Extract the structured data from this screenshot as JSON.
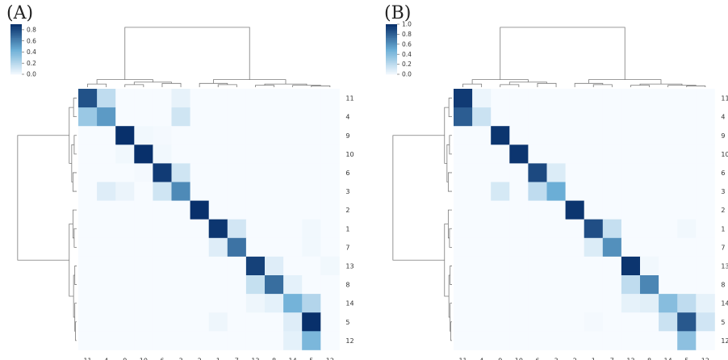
{
  "colors": {
    "low": "#f7fbff",
    "mid": "#6baed6",
    "high": "#08306b",
    "dendrogram": "#7a7a7a"
  },
  "chart_data": [
    {
      "type": "heatmap",
      "panel_label": "(A)",
      "row_labels": [
        "11",
        "4",
        "9",
        "10",
        "6",
        "3",
        "2",
        "1",
        "7",
        "13",
        "8",
        "14",
        "5",
        "12"
      ],
      "col_labels": [
        "11",
        "4",
        "9",
        "10",
        "6",
        "3",
        "2",
        "1",
        "7",
        "13",
        "8",
        "14",
        "5",
        "12"
      ],
      "colorbar": {
        "min": 0,
        "max": 0.9,
        "ticks": [
          "0.0",
          "0.2",
          "0.4",
          "0.6",
          "0.8"
        ]
      },
      "values": [
        [
          0.78,
          0.18,
          0,
          0,
          0,
          0.05,
          0,
          0,
          0,
          0,
          0,
          0,
          0,
          0
        ],
        [
          0.3,
          0.52,
          0,
          0,
          0,
          0.13,
          0,
          0,
          0,
          0,
          0,
          0,
          0,
          0
        ],
        [
          0,
          0,
          0.92,
          0.02,
          0.01,
          0,
          0,
          0,
          0,
          0,
          0,
          0,
          0,
          0
        ],
        [
          0,
          0,
          0.02,
          0.92,
          0.02,
          0,
          0,
          0,
          0,
          0,
          0,
          0,
          0,
          0
        ],
        [
          0,
          0,
          0,
          0.01,
          0.86,
          0.13,
          0,
          0,
          0,
          0,
          0,
          0,
          0,
          0
        ],
        [
          0,
          0.08,
          0.04,
          0,
          0.13,
          0.58,
          0,
          0,
          0,
          0,
          0,
          0,
          0,
          0
        ],
        [
          0,
          0,
          0,
          0,
          0,
          0,
          0.92,
          0,
          0,
          0,
          0,
          0,
          0,
          0
        ],
        [
          0,
          0,
          0,
          0,
          0,
          0,
          0,
          0.88,
          0.12,
          0,
          0,
          0,
          0.02,
          0
        ],
        [
          0,
          0,
          0,
          0,
          0,
          0,
          0,
          0.08,
          0.66,
          0,
          0,
          0,
          0.02,
          0
        ],
        [
          0,
          0,
          0,
          0,
          0,
          0,
          0,
          0,
          0,
          0.84,
          0.08,
          0,
          0,
          0.02
        ],
        [
          0,
          0,
          0,
          0,
          0,
          0,
          0,
          0,
          0,
          0.16,
          0.68,
          0.06,
          0,
          0
        ],
        [
          0,
          0,
          0,
          0,
          0,
          0,
          0,
          0,
          0,
          0.03,
          0.06,
          0.42,
          0.22,
          0
        ],
        [
          0,
          0,
          0,
          0,
          0,
          0,
          0,
          0.03,
          0,
          0,
          0,
          0.08,
          0.9,
          0
        ],
        [
          0,
          0,
          0,
          0,
          0,
          0,
          0,
          0,
          0,
          0,
          0,
          0.06,
          0.4,
          0
        ]
      ]
    },
    {
      "type": "heatmap",
      "panel_label": "(B)",
      "row_labels": [
        "11",
        "4",
        "9",
        "10",
        "6",
        "3",
        "2",
        "1",
        "7",
        "13",
        "8",
        "14",
        "5",
        "12"
      ],
      "col_labels": [
        "11",
        "4",
        "9",
        "10",
        "6",
        "3",
        "2",
        "1",
        "7",
        "13",
        "8",
        "14",
        "5",
        "12"
      ],
      "colorbar": {
        "min": 0,
        "max": 1.0,
        "ticks": [
          "0.0",
          "0.2",
          "0.4",
          "0.6",
          "0.8",
          "1.0"
        ]
      },
      "values": [
        [
          0.96,
          0.04,
          0,
          0,
          0,
          0,
          0,
          0,
          0,
          0,
          0,
          0,
          0,
          0
        ],
        [
          0.82,
          0.16,
          0,
          0,
          0,
          0,
          0,
          0,
          0,
          0,
          0,
          0,
          0,
          0
        ],
        [
          0,
          0,
          0.98,
          0,
          0,
          0,
          0,
          0,
          0,
          0,
          0,
          0,
          0,
          0
        ],
        [
          0,
          0,
          0,
          0.98,
          0,
          0,
          0,
          0,
          0,
          0,
          0,
          0,
          0,
          0
        ],
        [
          0,
          0,
          0,
          0,
          0.9,
          0.1,
          0,
          0,
          0,
          0,
          0,
          0,
          0,
          0
        ],
        [
          0,
          0,
          0.12,
          0,
          0.2,
          0.5,
          0,
          0,
          0,
          0,
          0,
          0,
          0,
          0
        ],
        [
          0,
          0,
          0,
          0,
          0,
          0,
          0.98,
          0,
          0,
          0,
          0,
          0,
          0,
          0
        ],
        [
          0,
          0,
          0,
          0,
          0,
          0,
          0,
          0.88,
          0.18,
          0,
          0,
          0,
          0.02,
          0
        ],
        [
          0,
          0,
          0,
          0,
          0,
          0,
          0,
          0.1,
          0.62,
          0,
          0,
          0,
          0,
          0
        ],
        [
          0,
          0,
          0,
          0,
          0,
          0,
          0,
          0,
          0,
          0.98,
          0.02,
          0,
          0,
          0
        ],
        [
          0,
          0,
          0,
          0,
          0,
          0,
          0,
          0,
          0,
          0.2,
          0.66,
          0,
          0,
          0
        ],
        [
          0,
          0,
          0,
          0,
          0,
          0,
          0,
          0,
          0,
          0.06,
          0.08,
          0.4,
          0.2,
          0.06
        ],
        [
          0,
          0,
          0,
          0,
          0,
          0,
          0,
          0.01,
          0,
          0,
          0,
          0.16,
          0.84,
          0.14
        ],
        [
          0,
          0,
          0,
          0,
          0,
          0,
          0,
          0,
          0,
          0,
          0,
          0,
          0.38,
          0
        ]
      ]
    }
  ]
}
